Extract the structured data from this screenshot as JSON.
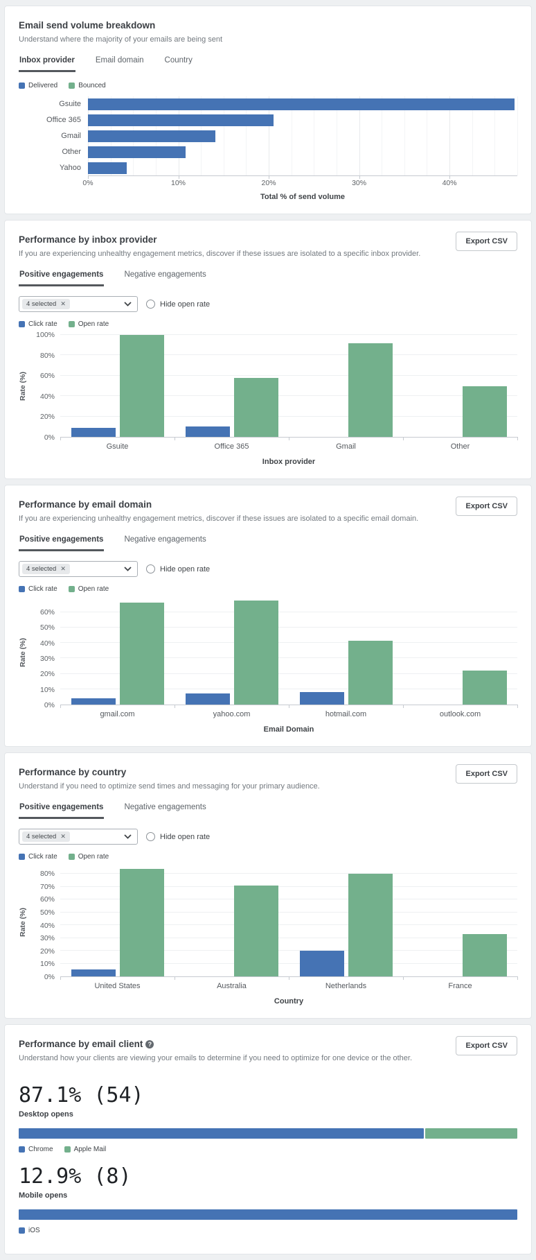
{
  "controls": {
    "dropdown_tag": "4 selected",
    "dropdown_clear_icon": "✕",
    "hide_open_rate_label": "Hide open rate"
  },
  "cards": [
    {
      "title": "Email send volume breakdown",
      "subtitle": "Understand where the majority of your emails are being sent",
      "tabs": [
        "Inbox provider",
        "Email domain",
        "Country"
      ],
      "active_tab": "Inbox provider"
    },
    {
      "title": "Performance by inbox provider",
      "subtitle": "If you are experiencing unhealthy engagement metrics, discover if these issues are isolated to a specific inbox provider.",
      "tabs": [
        "Positive engagements",
        "Negative engagements"
      ],
      "active_tab": "Positive engagements",
      "export_label": "Export CSV"
    },
    {
      "title": "Performance by email domain",
      "subtitle": "If you are experiencing unhealthy engagement metrics, discover if these issues are isolated to a specific email domain.",
      "tabs": [
        "Positive engagements",
        "Negative engagements"
      ],
      "active_tab": "Positive engagements",
      "export_label": "Export CSV"
    },
    {
      "title": "Performance by country",
      "subtitle": "Understand if you need to optimize send times and messaging for your primary audience.",
      "tabs": [
        "Positive engagements",
        "Negative engagements"
      ],
      "active_tab": "Positive engagements",
      "export_label": "Export CSV"
    },
    {
      "title": "Performance by email client",
      "subtitle": "Understand how your clients are viewing your emails to determine if you need to optimize for one device or the other.",
      "info_icon": "?",
      "export_label": "Export CSV"
    }
  ],
  "chart_data": [
    {
      "id": "email-send-volume",
      "type": "bar",
      "orientation": "horizontal",
      "title": "Email send volume breakdown",
      "categories": [
        "Gsuite",
        "Office 365",
        "Gmail",
        "Other",
        "Yahoo"
      ],
      "series": [
        {
          "name": "Delivered",
          "color": "#4573b4",
          "values": [
            47.2,
            20.5,
            14.1,
            10.8,
            4.3
          ]
        },
        {
          "name": "Bounced",
          "color": "#73b08c",
          "values": [
            0,
            0,
            0,
            0,
            0
          ]
        }
      ],
      "xlabel": "Total % of send volume",
      "xlim": [
        0,
        47.5
      ],
      "xticks": [
        0,
        10,
        20,
        30,
        40
      ],
      "grid": true,
      "legend_position": "top"
    },
    {
      "id": "performance-by-inbox-provider",
      "type": "bar",
      "orientation": "vertical",
      "title": "Performance by inbox provider",
      "categories": [
        "Gsuite",
        "Office 365",
        "Gmail",
        "Other"
      ],
      "series": [
        {
          "name": "Click rate",
          "color": "#4573b4",
          "values": [
            9,
            10.5,
            0,
            0
          ]
        },
        {
          "name": "Open rate",
          "color": "#73b08c",
          "values": [
            100,
            58,
            92,
            50
          ]
        }
      ],
      "xlabel": "Inbox provider",
      "ylabel": "Rate (%)",
      "ylim": [
        0,
        100
      ],
      "yticks": [
        0,
        20,
        40,
        60,
        80,
        100
      ],
      "grid": true,
      "legend_position": "top"
    },
    {
      "id": "performance-by-email-domain",
      "type": "bar",
      "orientation": "vertical",
      "title": "Performance by email domain",
      "categories": [
        "gmail.com",
        "yahoo.com",
        "hotmail.com",
        "outlook.com"
      ],
      "series": [
        {
          "name": "Click rate",
          "color": "#4573b4",
          "values": [
            4,
            7,
            8,
            0
          ]
        },
        {
          "name": "Open rate",
          "color": "#73b08c",
          "values": [
            66,
            67.5,
            41.5,
            22
          ]
        }
      ],
      "xlabel": "Email Domain",
      "ylabel": "Rate (%)",
      "ylim": [
        0,
        68
      ],
      "yticks": [
        0,
        10,
        20,
        30,
        40,
        50,
        60
      ],
      "grid": true,
      "legend_position": "top"
    },
    {
      "id": "performance-by-country",
      "type": "bar",
      "orientation": "vertical",
      "title": "Performance by country",
      "categories": [
        "United States",
        "Australia",
        "Netherlands",
        "France"
      ],
      "series": [
        {
          "name": "Click rate",
          "color": "#4573b4",
          "values": [
            5.5,
            0,
            20,
            0
          ]
        },
        {
          "name": "Open rate",
          "color": "#73b08c",
          "values": [
            84,
            71,
            80,
            33
          ]
        }
      ],
      "xlabel": "Country",
      "ylabel": "Rate (%)",
      "ylim": [
        0,
        85
      ],
      "yticks": [
        0,
        10,
        20,
        30,
        40,
        50,
        60,
        70,
        80
      ],
      "grid": true,
      "legend_position": "top"
    },
    {
      "id": "performance-by-email-client",
      "type": "bar",
      "orientation": "horizontal-stacked",
      "title": "Performance by email client",
      "groups": [
        {
          "value_label": "87.1% (54)",
          "label": "Desktop opens",
          "segments": [
            {
              "name": "Chrome",
              "color": "#4573b4",
              "pct": 81.5
            },
            {
              "name": "Apple Mail",
              "color": "#73b08c",
              "pct": 18.5
            }
          ]
        },
        {
          "value_label": "12.9% (8)",
          "label": "Mobile opens",
          "segments": [
            {
              "name": "iOS",
              "color": "#4573b4",
              "pct": 100
            }
          ]
        }
      ]
    }
  ]
}
